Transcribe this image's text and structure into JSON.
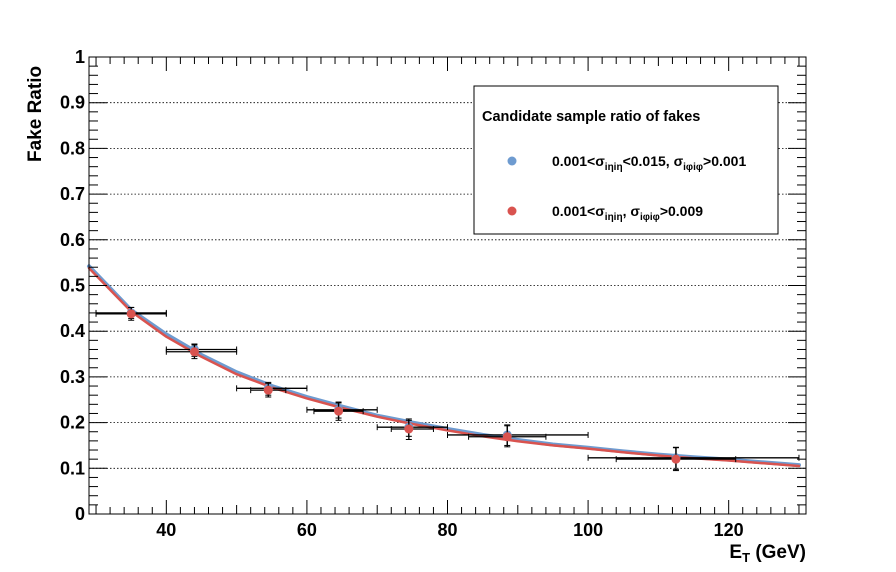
{
  "chart_data": {
    "type": "scatter",
    "xlabel_main": "E",
    "xlabel_sub": "T",
    "xlabel_unit": " (GeV)",
    "ylabel": "Fake Ratio",
    "xlim": [
      29,
      131
    ],
    "ylim": [
      0,
      1
    ],
    "x_ticks": [
      40,
      60,
      80,
      100,
      120
    ],
    "x_tick_labels": [
      "40",
      "60",
      "80",
      "100",
      "120"
    ],
    "y_ticks": [
      0,
      0.1,
      0.2,
      0.3,
      0.4,
      0.5,
      0.6,
      0.7,
      0.8,
      0.9,
      1
    ],
    "y_tick_labels": [
      "0",
      "0.1",
      "0.2",
      "0.3",
      "0.4",
      "0.5",
      "0.6",
      "0.7",
      "0.8",
      "0.9",
      "1"
    ],
    "grid": "horizontal dotted",
    "legend": {
      "placement": "top-right",
      "title": "Candidate sample ratio of fakes",
      "entries": [
        {
          "series": 0,
          "parts": [
            "0.001<",
            "σ",
            "iηiη",
            "<0.015,  ",
            "σ",
            "iφiφ",
            ">0.001"
          ]
        },
        {
          "series": 1,
          "parts": [
            "0.001<",
            "σ",
            "iηiη",
            ",  ",
            "σ",
            "iφiφ",
            ">0.009"
          ]
        }
      ]
    },
    "series": [
      {
        "color": "#6e9bd0",
        "points": [
          {
            "x": 35,
            "y": 0.44,
            "xlow": 30,
            "xhigh": 40,
            "ylow": 0.428,
            "yhigh": 0.452
          },
          {
            "x": 44,
            "y": 0.36,
            "xlow": 40,
            "xhigh": 50,
            "ylow": 0.345,
            "yhigh": 0.372
          },
          {
            "x": 54.5,
            "y": 0.275,
            "xlow": 50,
            "xhigh": 60,
            "ylow": 0.26,
            "yhigh": 0.288
          },
          {
            "x": 64.5,
            "y": 0.228,
            "xlow": 60,
            "xhigh": 70,
            "ylow": 0.21,
            "yhigh": 0.243
          },
          {
            "x": 74.5,
            "y": 0.19,
            "xlow": 70,
            "xhigh": 80,
            "ylow": 0.17,
            "yhigh": 0.205
          },
          {
            "x": 88.5,
            "y": 0.173,
            "xlow": 80,
            "xhigh": 100,
            "ylow": 0.15,
            "yhigh": 0.193
          },
          {
            "x": 112.5,
            "y": 0.123,
            "xlow": 100,
            "xhigh": 130,
            "ylow": 0.097,
            "yhigh": 0.145
          }
        ],
        "fit": [
          [
            29,
            0.542
          ],
          [
            35,
            0.446
          ],
          [
            40,
            0.393
          ],
          [
            45,
            0.348
          ],
          [
            50,
            0.31
          ],
          [
            55,
            0.28
          ],
          [
            60,
            0.256
          ],
          [
            65,
            0.235
          ],
          [
            70,
            0.215
          ],
          [
            75,
            0.2
          ],
          [
            80,
            0.186
          ],
          [
            85,
            0.173
          ],
          [
            90,
            0.162
          ],
          [
            95,
            0.152
          ],
          [
            100,
            0.145
          ],
          [
            105,
            0.137
          ],
          [
            110,
            0.13
          ],
          [
            115,
            0.124
          ],
          [
            120,
            0.119
          ],
          [
            125,
            0.113
          ],
          [
            130,
            0.107
          ]
        ]
      },
      {
        "color": "#d9534f",
        "points": [
          {
            "x": 35,
            "y": 0.438,
            "xlow": 30,
            "xhigh": 40,
            "ylow": 0.424,
            "yhigh": 0.452
          },
          {
            "x": 44,
            "y": 0.355,
            "xlow": 40,
            "xhigh": 50,
            "ylow": 0.34,
            "yhigh": 0.37
          },
          {
            "x": 54.5,
            "y": 0.271,
            "xlow": 52,
            "xhigh": 57,
            "ylow": 0.256,
            "yhigh": 0.286
          },
          {
            "x": 64.5,
            "y": 0.225,
            "xlow": 61,
            "xhigh": 68,
            "ylow": 0.205,
            "yhigh": 0.245
          },
          {
            "x": 74.5,
            "y": 0.186,
            "xlow": 72,
            "xhigh": 78,
            "ylow": 0.163,
            "yhigh": 0.208
          },
          {
            "x": 88.5,
            "y": 0.169,
            "xlow": 83,
            "xhigh": 94,
            "ylow": 0.147,
            "yhigh": 0.195
          },
          {
            "x": 112.5,
            "y": 0.12,
            "xlow": 104,
            "xhigh": 121,
            "ylow": 0.095,
            "yhigh": 0.146
          }
        ],
        "fit": [
          [
            29,
            0.538
          ],
          [
            35,
            0.443
          ],
          [
            40,
            0.388
          ],
          [
            45,
            0.344
          ],
          [
            50,
            0.306
          ],
          [
            55,
            0.277
          ],
          [
            60,
            0.253
          ],
          [
            65,
            0.232
          ],
          [
            70,
            0.213
          ],
          [
            75,
            0.197
          ],
          [
            80,
            0.183
          ],
          [
            85,
            0.17
          ],
          [
            90,
            0.159
          ],
          [
            95,
            0.15
          ],
          [
            100,
            0.143
          ],
          [
            105,
            0.135
          ],
          [
            110,
            0.128
          ],
          [
            115,
            0.122
          ],
          [
            120,
            0.117
          ],
          [
            125,
            0.111
          ],
          [
            130,
            0.105
          ]
        ]
      }
    ]
  }
}
